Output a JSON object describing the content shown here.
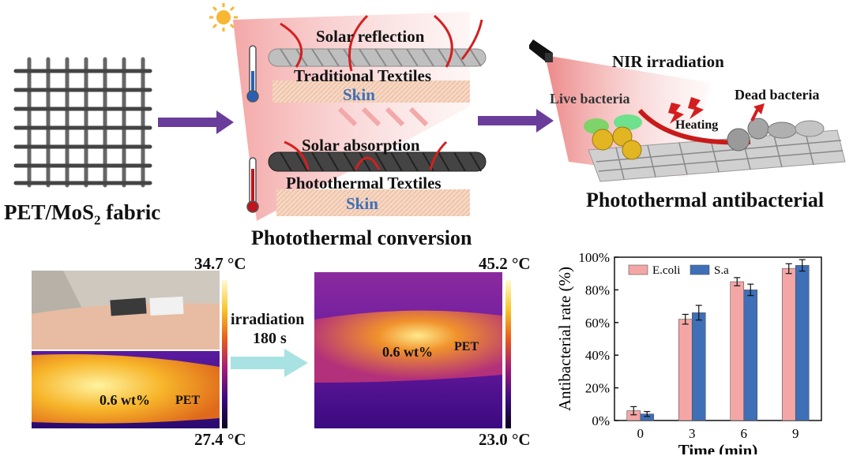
{
  "fabric": {
    "label_pre": "PET/MoS",
    "label_sub": "2",
    "label_post": " fabric"
  },
  "conversion": {
    "solar_reflection": "Solar reflection",
    "traditional": "Traditional Textiles",
    "skin_top": "Skin",
    "solar_absorption": "Solar absorption",
    "photothermal": "Photothermal Textiles",
    "skin_bottom": "Skin",
    "caption": "Photothermal conversion"
  },
  "antibacterial": {
    "nir": "NIR irradiation",
    "live": "Live bacteria",
    "dead": "Dead bacteria",
    "heating": "Heating",
    "caption": "Photothermal antibacterial"
  },
  "thermal": {
    "left_max": "34.7 °C",
    "left_min": "27.4 °C",
    "left_sample": "0.6 wt%",
    "left_pet": "PET",
    "arrow_line1": "irradiation",
    "arrow_line2": "180 s",
    "right_max": "45.2 °C",
    "right_min": "23.0 °C",
    "right_sample": "0.6 wt%",
    "right_pet": "PET"
  },
  "colors": {
    "accent_arrow": "#6a3d9a",
    "pink": "#f08a8a",
    "blue": "#3f6fb6",
    "skin": "#f6d7c3"
  },
  "chart_data": {
    "type": "bar",
    "categories": [
      "0",
      "3",
      "6",
      "9"
    ],
    "series": [
      {
        "name": "E.coli",
        "values": [
          6,
          62,
          85,
          93
        ],
        "errors": [
          2.5,
          3,
          2.5,
          3
        ],
        "color": "#f4a6a6"
      },
      {
        "name": "S.a",
        "values": [
          4,
          66,
          80,
          95
        ],
        "errors": [
          1.5,
          4.5,
          3.5,
          3.5
        ],
        "color": "#3f6fb6"
      }
    ],
    "xlabel": "Time (min)",
    "ylabel": "Antibacterial rate (%)",
    "ylim": [
      0,
      100
    ],
    "yticks": [
      "0%",
      "20%",
      "40%",
      "60%",
      "80%",
      "100%"
    ],
    "legend": "top-left"
  }
}
